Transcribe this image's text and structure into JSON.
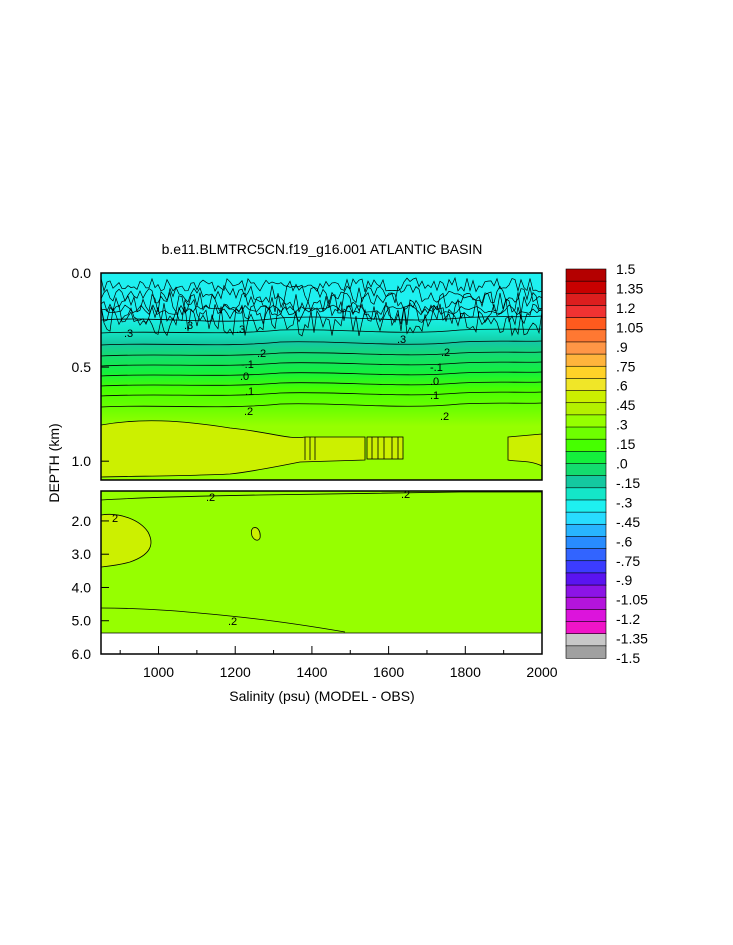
{
  "chart_data": {
    "type": "heatmap",
    "title": "b.e11.BLMTRC5CN.f19_g16.001 ATLANTIC BASIN",
    "xlabel": "Salinity (psu) (MODEL - OBS)",
    "ylabel": "DEPTH (km)",
    "xlim": [
      850,
      2000
    ],
    "x_ticks": [
      "1000",
      "1200",
      "1400",
      "1600",
      "1800",
      "2000"
    ],
    "upper_panel": {
      "ylim": [
        0.0,
        1.1
      ],
      "y_ticks": [
        "0.0",
        "0.5",
        "1.0"
      ]
    },
    "lower_panel": {
      "ylim": [
        1.1,
        6.0
      ],
      "y_ticks": [
        "2.0",
        "3.0",
        "4.0",
        "5.0",
        "6.0"
      ]
    },
    "colorbar": {
      "labels": [
        "1.5",
        "1.35",
        "1.2",
        "1.05",
        ".9",
        ".75",
        ".6",
        ".45",
        ".3",
        ".15",
        ".0",
        "-.15",
        "-.3",
        "-.45",
        "-.6",
        "-.75",
        "-.9",
        "-1.05",
        "-1.2",
        "-1.35",
        "-1.5"
      ],
      "colors": [
        "#b40000",
        "#c80000",
        "#dc1e1e",
        "#f03232",
        "#ff5a1e",
        "#ff7832",
        "#ff9646",
        "#ffb43c",
        "#ffd228",
        "#f0e628",
        "#ccf000",
        "#b4f000",
        "#96ff00",
        "#6eff00",
        "#46ff00",
        "#14f03c",
        "#14dc6e",
        "#14c8a0",
        "#14e6c8",
        "#1ef0f0",
        "#28dcff",
        "#28b4ff",
        "#288cff",
        "#3264ff",
        "#3c3cff",
        "#5a14f0",
        "#8c14e6",
        "#b414dc",
        "#dc14dc",
        "#f014c8",
        "#c8c8c8",
        "#a0a0a0"
      ]
    },
    "contour_labels": [
      ".3",
      ".3",
      ".3",
      ".3",
      ".2",
      ".2",
      "-.1",
      "-.1",
      ".0",
      ".0",
      ".1",
      ".1",
      ".2",
      ".2",
      ".2",
      ".2",
      "2",
      ".2"
    ]
  }
}
